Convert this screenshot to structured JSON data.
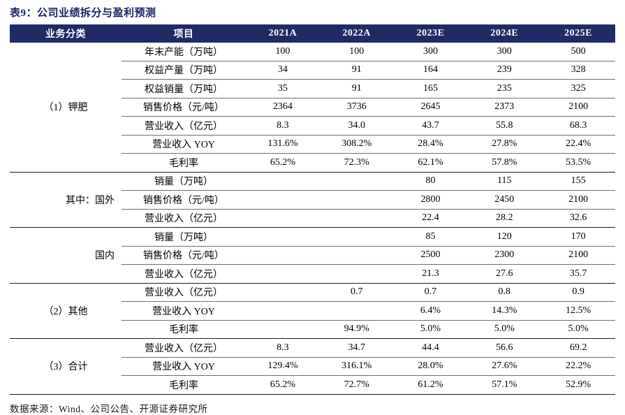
{
  "title": "表9：公司业绩拆分与盈利预测",
  "colors": {
    "header_bg": "#1F2A66",
    "header_text": "#FFFFFF",
    "title_text": "#17215F",
    "inner_rule": "#6e6e6e",
    "group_rule": "#1c1c1c"
  },
  "table": {
    "headers": [
      "业务分类",
      "项目",
      "2021A",
      "2022A",
      "2023E",
      "2024E",
      "2025E"
    ],
    "groups": [
      {
        "label": "（1）钾肥",
        "align": "center",
        "rows": [
          {
            "item": "年末产能（万吨）",
            "values": [
              "100",
              "100",
              "300",
              "300",
              "500"
            ]
          },
          {
            "item": "权益产量（万吨）",
            "values": [
              "34",
              "91",
              "164",
              "239",
              "328"
            ]
          },
          {
            "item": "权益销量（万吨）",
            "values": [
              "35",
              "91",
              "165",
              "235",
              "325"
            ]
          },
          {
            "item": "销售价格（元/吨）",
            "values": [
              "2364",
              "3736",
              "2645",
              "2373",
              "2100"
            ]
          },
          {
            "item": "营业收入（亿元）",
            "values": [
              "8.3",
              "34.0",
              "43.7",
              "55.8",
              "68.3"
            ]
          },
          {
            "item": "营业收入 YOY",
            "values": [
              "131.6%",
              "308.2%",
              "28.4%",
              "27.8%",
              "22.4%"
            ]
          },
          {
            "item": "毛利率",
            "values": [
              "65.2%",
              "72.3%",
              "62.1%",
              "57.8%",
              "53.5%"
            ]
          }
        ]
      },
      {
        "label": "其中：国外",
        "align": "right",
        "rows": [
          {
            "item": "销量（万吨）",
            "values": [
              "",
              "",
              "80",
              "115",
              "155"
            ]
          },
          {
            "item": "销售价格（元/吨）",
            "values": [
              "",
              "",
              "2800",
              "2450",
              "2100"
            ]
          },
          {
            "item": "营业收入（亿元）",
            "values": [
              "",
              "",
              "22.4",
              "28.2",
              "32.6"
            ]
          }
        ]
      },
      {
        "label": "国内",
        "align": "right",
        "rows": [
          {
            "item": "销量（万吨）",
            "values": [
              "",
              "",
              "85",
              "120",
              "170"
            ]
          },
          {
            "item": "销售价格（元/吨）",
            "values": [
              "",
              "",
              "2500",
              "2300",
              "2100"
            ]
          },
          {
            "item": "营业收入（亿元）",
            "values": [
              "",
              "",
              "21.3",
              "27.6",
              "35.7"
            ]
          }
        ]
      },
      {
        "label": "（2）其他",
        "align": "center",
        "rows": [
          {
            "item": "营业收入（亿元）",
            "values": [
              "",
              "0.7",
              "0.7",
              "0.8",
              "0.9"
            ]
          },
          {
            "item": "营业收入 YOY",
            "values": [
              "",
              "",
              "6.4%",
              "14.3%",
              "12.5%"
            ]
          },
          {
            "item": "毛利率",
            "values": [
              "",
              "94.9%",
              "5.0%",
              "5.0%",
              "5.0%"
            ]
          }
        ]
      },
      {
        "label": "（3）合计",
        "align": "center",
        "rows": [
          {
            "item": "营业收入（亿元）",
            "values": [
              "8.3",
              "34.7",
              "44.4",
              "56.6",
              "69.2"
            ]
          },
          {
            "item": "营业收入 YOY",
            "values": [
              "129.4%",
              "316.1%",
              "28.0%",
              "27.6%",
              "22.2%"
            ]
          },
          {
            "item": "毛利率",
            "values": [
              "65.2%",
              "72.7%",
              "61.2%",
              "57.1%",
              "52.9%"
            ]
          }
        ]
      }
    ]
  },
  "source": "数据来源：Wind、公司公告、开源证券研究所"
}
